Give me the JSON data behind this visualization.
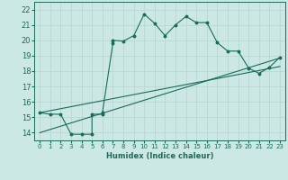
{
  "xlabel": "Humidex (Indice chaleur)",
  "bg_color": "#cce8e5",
  "grid_color": "#b8d8d4",
  "line_color": "#1a6b5a",
  "xlim": [
    -0.5,
    23.5
  ],
  "ylim": [
    13.5,
    22.5
  ],
  "xticks": [
    0,
    1,
    2,
    3,
    4,
    5,
    6,
    7,
    8,
    9,
    10,
    11,
    12,
    13,
    14,
    15,
    16,
    17,
    18,
    19,
    20,
    21,
    22,
    23
  ],
  "yticks": [
    14,
    15,
    16,
    17,
    18,
    19,
    20,
    21,
    22
  ],
  "line1_x": [
    0,
    1,
    2,
    3,
    4,
    5,
    5,
    6,
    6,
    7,
    7,
    8,
    9,
    10,
    11,
    12,
    13,
    14,
    15,
    16,
    17,
    18,
    19,
    20,
    21,
    22,
    23
  ],
  "line1_y": [
    15.3,
    15.2,
    15.2,
    13.9,
    13.9,
    13.9,
    15.2,
    15.2,
    15.3,
    19.8,
    20.0,
    19.95,
    20.3,
    21.7,
    21.1,
    20.3,
    21.0,
    21.55,
    21.15,
    21.15,
    19.85,
    19.3,
    19.3,
    18.2,
    17.85,
    18.25,
    18.9
  ],
  "line2_x": [
    0,
    23
  ],
  "line2_y": [
    15.3,
    18.3
  ],
  "line3_x": [
    0,
    23
  ],
  "line3_y": [
    14.0,
    18.85
  ],
  "xlim_tight": [
    0,
    23
  ]
}
